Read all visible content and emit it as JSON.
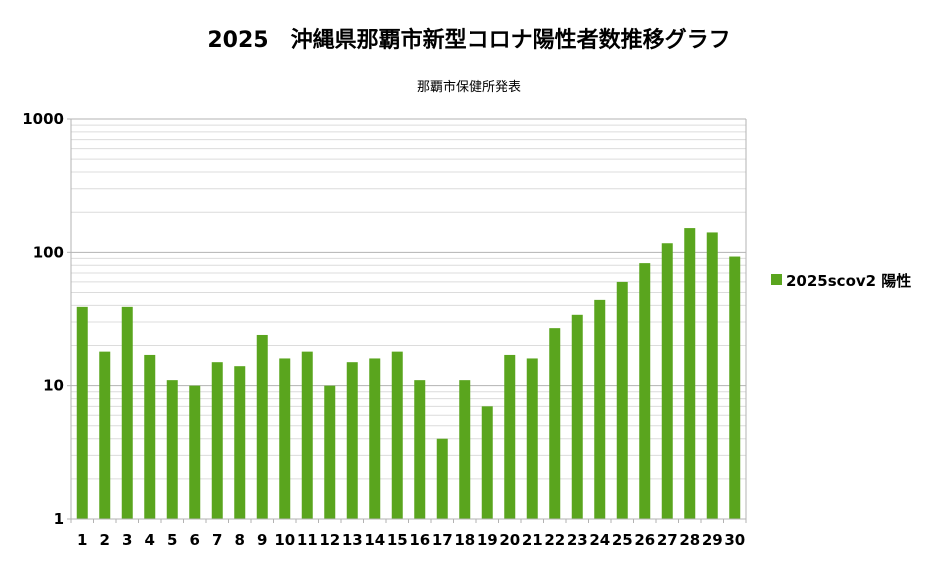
{
  "chart_data": {
    "type": "bar",
    "title": "2025　沖縄県那覇市新型コロナ陽性者数推移グラフ",
    "subtitle": "那覇市保健所発表",
    "categories": [
      "1",
      "2",
      "3",
      "4",
      "5",
      "6",
      "7",
      "8",
      "9",
      "10",
      "11",
      "12",
      "13",
      "14",
      "15",
      "16",
      "17",
      "18",
      "19",
      "20",
      "21",
      "22",
      "23",
      "24",
      "25",
      "26",
      "27",
      "28",
      "29",
      "30"
    ],
    "series": [
      {
        "name": "2025scov2 陽性",
        "color": "#5aa51e",
        "values": [
          39,
          18,
          39,
          17,
          11,
          10,
          15,
          14,
          24,
          16,
          18,
          10,
          15,
          16,
          18,
          11,
          4,
          11,
          7,
          17,
          16,
          27,
          34,
          44,
          60,
          83,
          117,
          152,
          141,
          93
        ]
      }
    ],
    "yscale": "log",
    "ylim": [
      1,
      1000
    ],
    "yticks": [
      "1",
      "10",
      "100",
      "1000"
    ],
    "grid": true,
    "legend_position": "right"
  }
}
